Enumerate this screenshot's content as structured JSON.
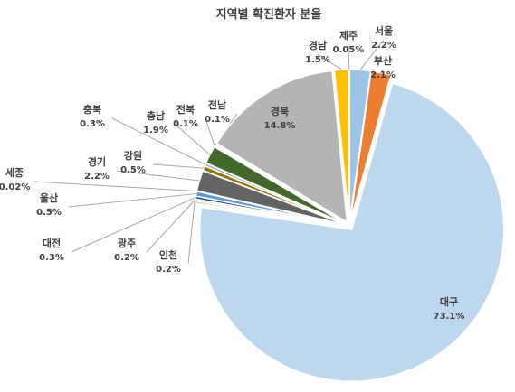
{
  "chart_data": {
    "type": "pie",
    "title": "지역별 확진환자 분율",
    "categories": [
      "서울",
      "부산",
      "대구",
      "인천",
      "광주",
      "대전",
      "울산",
      "세종",
      "경기",
      "강원",
      "충북",
      "충남",
      "전북",
      "전남",
      "경북",
      "경남",
      "제주"
    ],
    "values": [
      2.2,
      2.1,
      73.1,
      0.2,
      0.2,
      0.3,
      0.5,
      0.02,
      2.2,
      0.5,
      0.3,
      1.9,
      0.1,
      0.1,
      14.8,
      1.5,
      0.05
    ],
    "value_labels": [
      "2.2%",
      "2.1%",
      "73.1%",
      "0.2%",
      "0.2%",
      "0.3%",
      "0.5%",
      "0.02%",
      "2.2%",
      "0.5%",
      "0.3%",
      "1.9%",
      "0.1%",
      "0.1%",
      "14.8%",
      "1.5%",
      "0.05%"
    ],
    "colors": [
      "#9dc3e6",
      "#ed7d31",
      "#bdd7ee",
      "#70ad47",
      "#a9d18e",
      "#264478",
      "#5b9bd5",
      "#9e480e",
      "#636363",
      "#997300",
      "#8faadc",
      "#43682b",
      "#f4b183",
      "#c55a11",
      "#b4b4b4",
      "#ffc000",
      "#2e75b6"
    ]
  }
}
